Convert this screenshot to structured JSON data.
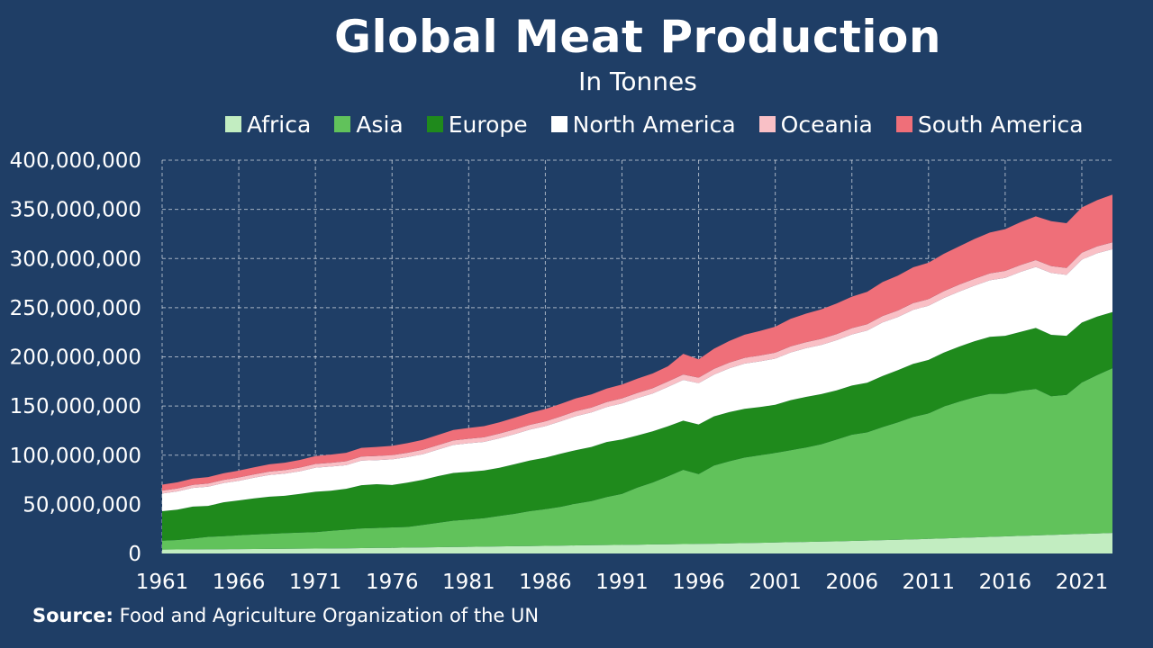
{
  "chart_data": {
    "type": "area",
    "stacked": true,
    "title": "Global Meat Production",
    "subtitle": "In Tonnes",
    "xlabel": "",
    "ylabel": "",
    "x": [
      1961,
      1962,
      1963,
      1964,
      1965,
      1966,
      1967,
      1968,
      1969,
      1970,
      1971,
      1972,
      1973,
      1974,
      1975,
      1976,
      1977,
      1978,
      1979,
      1980,
      1981,
      1982,
      1983,
      1984,
      1985,
      1986,
      1987,
      1988,
      1989,
      1990,
      1991,
      1992,
      1993,
      1994,
      1995,
      1996,
      1997,
      1998,
      1999,
      2000,
      2001,
      2002,
      2003,
      2004,
      2005,
      2006,
      2007,
      2008,
      2009,
      2010,
      2011,
      2012,
      2013,
      2014,
      2015,
      2016,
      2017,
      2018,
      2019,
      2020,
      2021,
      2022,
      2023
    ],
    "x_ticks": [
      "1961",
      "1966",
      "1971",
      "1976",
      "1981",
      "1986",
      "1991",
      "1996",
      "2001",
      "2006",
      "2011",
      "2016",
      "2021"
    ],
    "ylim": [
      0,
      400000000
    ],
    "y_ticks": [
      "0",
      "50,000,000",
      "100,000,000",
      "150,000,000",
      "200,000,000",
      "250,000,000",
      "300,000,000",
      "350,000,000",
      "400,000,000"
    ],
    "grid": true,
    "legend_position": "top",
    "series": [
      {
        "name": "Africa",
        "color": "#c2edc1",
        "values": [
          4000000,
          4100000,
          4200000,
          4300000,
          4400000,
          4500000,
          4600000,
          4700000,
          4800000,
          4900000,
          5000000,
          5100000,
          5300000,
          5500000,
          5700000,
          5800000,
          6000000,
          6200000,
          6400000,
          6600000,
          6800000,
          7000000,
          7200000,
          7400000,
          7600000,
          7800000,
          8000000,
          8200000,
          8400000,
          8600000,
          8800000,
          9000000,
          9200000,
          9400000,
          9600000,
          9800000,
          10000000,
          10300000,
          10600000,
          10900000,
          11200000,
          11500000,
          11800000,
          12100000,
          12400000,
          12800000,
          13200000,
          13600000,
          14000000,
          14400000,
          14900000,
          15400000,
          15900000,
          16400000,
          16900000,
          17400000,
          17900000,
          18400000,
          18900000,
          19400000,
          19900000,
          20400000,
          21000000
        ]
      },
      {
        "name": "Asia",
        "color": "#61c25b",
        "values": [
          9000000,
          9600000,
          11000000,
          12600000,
          13200000,
          14000000,
          14700000,
          15300000,
          15900000,
          16300000,
          16800000,
          18000000,
          19000000,
          20000000,
          20300000,
          20700000,
          21000000,
          22800000,
          24800000,
          26800000,
          27800000,
          29000000,
          31000000,
          33000000,
          35500000,
          37200000,
          39500000,
          42500000,
          45000000,
          48800000,
          51800000,
          58000000,
          63000000,
          69000000,
          75500000,
          71000000,
          79500000,
          83500000,
          87000000,
          89000000,
          91000000,
          93500000,
          96000000,
          99000000,
          103500000,
          108000000,
          110000000,
          115000000,
          119500000,
          124500000,
          127500000,
          134000000,
          138500000,
          142500000,
          145500000,
          145000000,
          147500000,
          149000000,
          141000000,
          142000000,
          154000000,
          161000000,
          167500000
        ]
      },
      {
        "name": "Europe",
        "color": "#1f8a1c",
        "values": [
          30000000,
          31000000,
          32500000,
          31500000,
          34500000,
          35500000,
          36800000,
          37800000,
          38000000,
          39500000,
          41000000,
          40800000,
          41500000,
          44000000,
          44500000,
          43200000,
          45000000,
          46000000,
          47500000,
          48500000,
          48500000,
          48500000,
          49000000,
          50500000,
          51500000,
          52500000,
          54000000,
          54500000,
          55000000,
          56000000,
          55500000,
          53000000,
          52000000,
          51000000,
          50000000,
          50500000,
          50000000,
          50000000,
          49500000,
          49000000,
          49000000,
          51000000,
          51500000,
          51000000,
          50000000,
          50000000,
          50500000,
          52000000,
          53000000,
          54000000,
          54500000,
          55000000,
          56000000,
          57000000,
          58000000,
          59000000,
          60000000,
          62000000,
          62500000,
          60000000,
          61000000,
          59500000,
          57000000
        ]
      },
      {
        "name": "North America",
        "color": "#ffffff",
        "values": [
          18000000,
          18500000,
          19000000,
          19500000,
          19500000,
          20000000,
          21000000,
          22000000,
          22500000,
          23000000,
          24500000,
          24500000,
          24000000,
          25000000,
          24500000,
          26000000,
          26000000,
          26000000,
          27000000,
          28500000,
          29000000,
          29000000,
          30000000,
          30500000,
          31500000,
          32000000,
          33000000,
          34500000,
          35000000,
          35500000,
          36500000,
          38000000,
          38500000,
          40000000,
          41500000,
          42000000,
          42500000,
          44500000,
          46000000,
          46500000,
          47000000,
          48500000,
          49500000,
          50000000,
          51000000,
          52000000,
          53000000,
          54500000,
          54000000,
          55000000,
          55000000,
          55500000,
          56000000,
          56500000,
          57500000,
          59000000,
          61000000,
          62000000,
          63000000,
          62000000,
          64000000,
          64500000,
          64000000
        ]
      },
      {
        "name": "Oceania",
        "color": "#f9c0c6",
        "values": [
          3000000,
          3000000,
          3100000,
          3200000,
          3200000,
          3300000,
          3400000,
          3500000,
          3600000,
          3700000,
          3800000,
          3900000,
          4000000,
          4100000,
          4200000,
          4300000,
          4400000,
          4500000,
          4500000,
          4600000,
          4600000,
          4700000,
          4700000,
          4800000,
          4800000,
          4900000,
          4900000,
          5000000,
          5000000,
          5100000,
          5200000,
          5300000,
          5400000,
          5500000,
          5500000,
          5600000,
          5700000,
          5800000,
          5900000,
          6000000,
          6000000,
          6100000,
          6100000,
          6200000,
          6300000,
          6400000,
          6500000,
          6500000,
          6600000,
          6700000,
          6800000,
          6900000,
          7000000,
          7000000,
          7000000,
          7000000,
          7000000,
          7000000,
          7000000,
          7000000,
          7000000,
          7000000,
          7000000
        ]
      },
      {
        "name": "South America",
        "color": "#ef6f79",
        "values": [
          6000000,
          6200000,
          6400000,
          6600000,
          6800000,
          7000000,
          7200000,
          7400000,
          7600000,
          7800000,
          8000000,
          8300000,
          8600000,
          8900000,
          9200000,
          9500000,
          9800000,
          10100000,
          10400000,
          10700000,
          11000000,
          11300000,
          11600000,
          11900000,
          12200000,
          12500000,
          12800000,
          13100000,
          13400000,
          13700000,
          14000000,
          14500000,
          15000000,
          15500000,
          21000000,
          18500000,
          20500000,
          22000000,
          23500000,
          25000000,
          26500000,
          28000000,
          29000000,
          30000000,
          31000000,
          32000000,
          33000000,
          34500000,
          35500000,
          36500000,
          37000000,
          38000000,
          39000000,
          40500000,
          41500000,
          42500000,
          43500000,
          44500000,
          45500000,
          45500000,
          46000000,
          47000000,
          48500000
        ]
      }
    ]
  },
  "source": {
    "label": "Source:",
    "text": "Food and Agriculture Organization of the UN"
  }
}
